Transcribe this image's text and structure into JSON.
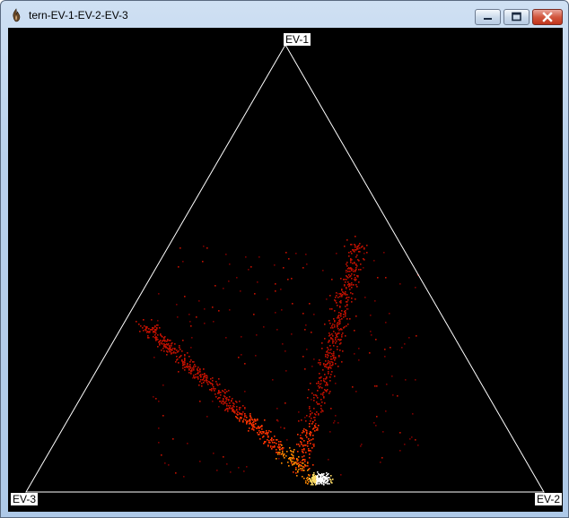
{
  "window": {
    "title": "tern-EV-1-EV-2-EV-3",
    "app_icon": "flame-icon",
    "controls": [
      "minimize-icon",
      "maximize-icon",
      "close-icon"
    ]
  },
  "plot": {
    "background_color": "#000000",
    "triangle_color": "#ffffff",
    "vertex_labels": {
      "top": "EV-1",
      "bottom_left": "EV-3",
      "bottom_right": "EV-2"
    },
    "point_colors": [
      "#7a0000",
      "#c01000",
      "#ff3300",
      "#ff8800",
      "#ffdd66",
      "#ffffff"
    ]
  }
}
